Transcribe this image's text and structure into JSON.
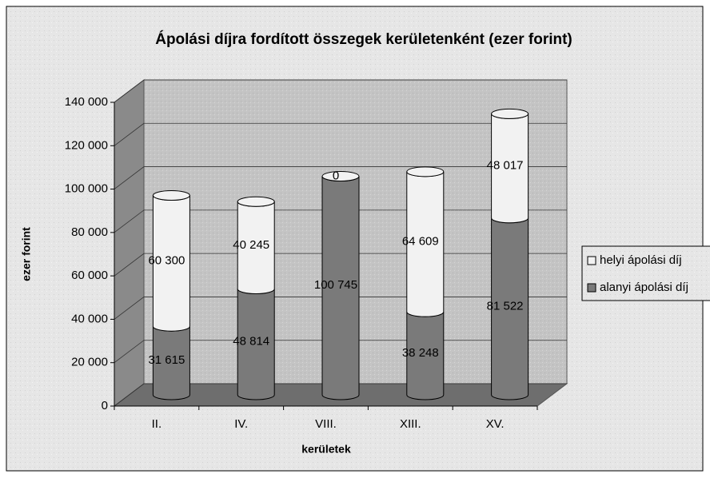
{
  "chart_data": {
    "type": "bar",
    "title": "Ápolási díjra fordított összegek kerületenként (ezer forint)",
    "y_label": "ezer forint",
    "x_label": "kerületek",
    "categories": [
      "II.",
      "IV.",
      "VIII.",
      "XIII.",
      "XV."
    ],
    "stacked": true,
    "series": [
      {
        "name": "alanyi ápolási díj",
        "color": "#7a7a7a",
        "values": [
          31615,
          48814,
          100745,
          38248,
          81522
        ],
        "value_labels": [
          "31 615",
          "48 814",
          "100 745",
          "38 248",
          "81 522"
        ]
      },
      {
        "name": "helyi ápolási díj",
        "color": "#f2f2f2",
        "values": [
          60300,
          40245,
          0,
          64609,
          48017
        ],
        "value_labels": [
          "60 300",
          "40 245",
          "0",
          "64 609",
          "48 017"
        ]
      }
    ],
    "ylim": [
      0,
      140000
    ],
    "yticks": [
      0,
      {
        "value": 20000,
        "label": "20 000"
      },
      {
        "value": 40000,
        "label": "40 000"
      },
      {
        "value": 60000,
        "label": "60 000"
      },
      {
        "value": 80000,
        "label": "80 000"
      },
      {
        "value": 100000,
        "label": "100 000"
      },
      {
        "value": 120000,
        "label": "120 000"
      },
      {
        "value": 140000,
        "label": "140 000"
      }
    ],
    "grid": true,
    "legend": "right"
  }
}
